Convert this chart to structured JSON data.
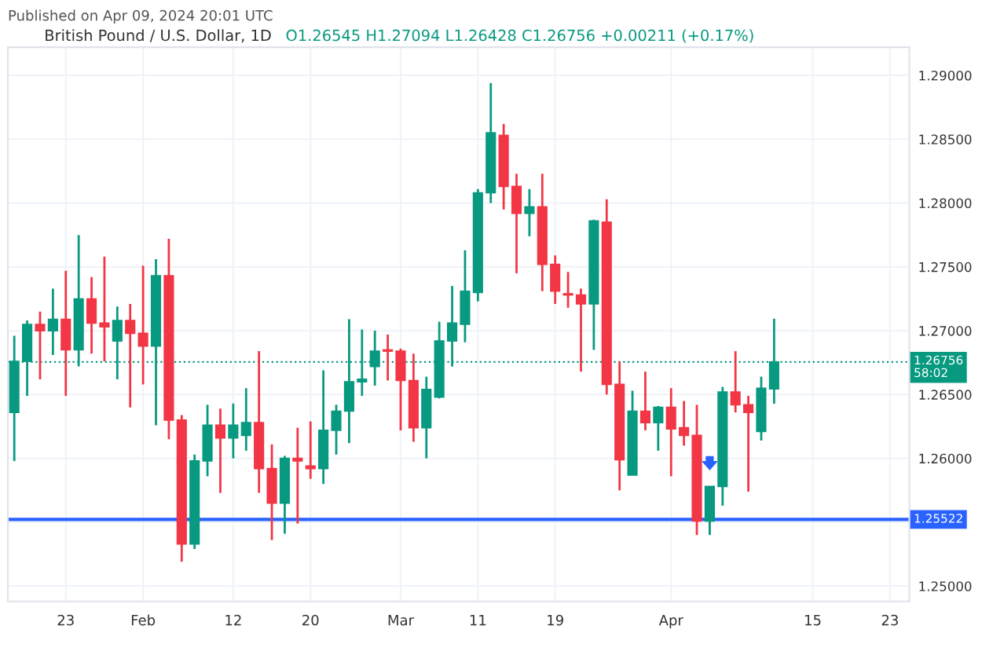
{
  "chart_data": {
    "type": "candlestick",
    "title": "British Pound / U.S. Dollar, 1D",
    "subtitle": "O1.26545 H1.27094 L1.26428 C1.26756 +0.00211 (+0.17%)",
    "annotations": [
      "Published on Apr 09, 2024 20:01 UTC"
    ],
    "categories": [
      null,
      null,
      null,
      null,
      "23",
      null,
      null,
      null,
      null,
      null,
      "Feb",
      null,
      null,
      null,
      null,
      null,
      null,
      "12",
      null,
      null,
      null,
      null,
      null,
      "20",
      null,
      null,
      null,
      null,
      null,
      null,
      "Mar",
      null,
      null,
      null,
      null,
      null,
      "11",
      null,
      null,
      null,
      null,
      null,
      "19",
      null,
      null,
      null,
      null,
      null,
      null,
      null,
      null,
      "Apr",
      null,
      null,
      null,
      null,
      null,
      null,
      null,
      null,
      null,
      null,
      "15",
      null,
      null,
      null,
      null,
      null,
      "23",
      null
    ],
    "ohlc": [
      [
        1.2636,
        1.2696,
        1.2598,
        1.2676
      ],
      [
        1.2676,
        1.2708,
        1.2649,
        1.2705
      ],
      [
        1.2705,
        1.2715,
        1.2662,
        1.27
      ],
      [
        1.27,
        1.2733,
        1.2681,
        1.2709
      ],
      [
        1.2709,
        1.2747,
        1.2649,
        1.2685
      ],
      [
        1.2685,
        1.2775,
        1.2672,
        1.2725
      ],
      [
        1.2725,
        1.2742,
        1.2682,
        1.2706
      ],
      [
        1.2706,
        1.2758,
        1.2676,
        1.2703
      ],
      [
        1.2692,
        1.2719,
        1.2662,
        1.2708
      ],
      [
        1.2708,
        1.2721,
        1.264,
        1.2698
      ],
      [
        1.2698,
        1.2751,
        1.2658,
        1.2688
      ],
      [
        1.2688,
        1.2756,
        1.2626,
        1.2743
      ],
      [
        1.2743,
        1.2772,
        1.2615,
        1.263
      ],
      [
        1.263,
        1.2634,
        1.2519,
        1.2533
      ],
      [
        1.2533,
        1.2603,
        1.2529,
        1.2598
      ],
      [
        1.2598,
        1.2642,
        1.2586,
        1.2626
      ],
      [
        1.2626,
        1.2639,
        1.2573,
        1.2616
      ],
      [
        1.2616,
        1.2643,
        1.26,
        1.2626
      ],
      [
        1.2618,
        1.2655,
        1.2606,
        1.2628
      ],
      [
        1.2628,
        1.2684,
        1.2573,
        1.2592
      ],
      [
        1.2592,
        1.2611,
        1.2536,
        1.2565
      ],
      [
        1.2565,
        1.2602,
        1.2541,
        1.26
      ],
      [
        1.26,
        1.2624,
        1.2549,
        1.2598
      ],
      [
        1.2594,
        1.2629,
        1.2584,
        1.2592
      ],
      [
        1.2592,
        1.2669,
        1.258,
        1.2622
      ],
      [
        1.2622,
        1.2642,
        1.2603,
        1.2637
      ],
      [
        1.2637,
        1.2709,
        1.2612,
        1.266
      ],
      [
        1.266,
        1.2701,
        1.2649,
        1.2662
      ],
      [
        1.2672,
        1.27,
        1.2657,
        1.2684
      ],
      [
        1.2685,
        1.2697,
        1.2661,
        1.2684
      ],
      [
        1.2684,
        1.2686,
        1.2622,
        1.2661
      ],
      [
        1.2661,
        1.2682,
        1.2613,
        1.2624
      ],
      [
        1.2624,
        1.2664,
        1.26,
        1.2654
      ],
      [
        1.2648,
        1.2707,
        1.2647,
        1.2692
      ],
      [
        1.2692,
        1.2735,
        1.2672,
        1.2706
      ],
      [
        1.2705,
        1.2763,
        1.2691,
        1.2731
      ],
      [
        1.273,
        1.2811,
        1.2723,
        1.2808
      ],
      [
        1.2808,
        1.2894,
        1.28,
        1.2855
      ],
      [
        1.2853,
        1.2862,
        1.2795,
        1.2813
      ],
      [
        1.2813,
        1.2823,
        1.2745,
        1.2792
      ],
      [
        1.2792,
        1.2811,
        1.2774,
        1.2797
      ],
      [
        1.2797,
        1.2823,
        1.2731,
        1.2752
      ],
      [
        1.2752,
        1.2759,
        1.2721,
        1.2731
      ],
      [
        1.2729,
        1.2746,
        1.2718,
        1.2728
      ],
      [
        1.2728,
        1.2733,
        1.2668,
        1.2721
      ],
      [
        1.2721,
        1.2787,
        1.2685,
        1.2786
      ],
      [
        1.2785,
        1.2803,
        1.265,
        1.2658
      ],
      [
        1.2658,
        1.2676,
        1.2575,
        1.2599
      ],
      [
        1.2587,
        1.2653,
        1.2587,
        1.2637
      ],
      [
        1.2637,
        1.2668,
        1.2622,
        1.2628
      ],
      [
        1.2628,
        1.2641,
        1.2606,
        1.264
      ],
      [
        1.264,
        1.2655,
        1.2586,
        1.2623
      ],
      [
        1.2624,
        1.2645,
        1.261,
        1.2618
      ],
      [
        1.2618,
        1.2642,
        1.254,
        1.2551
      ],
      [
        1.2551,
        1.2578,
        1.254,
        1.2578
      ],
      [
        1.2578,
        1.2656,
        1.2563,
        1.2652
      ],
      [
        1.2652,
        1.2684,
        1.2636,
        1.2642
      ],
      [
        1.2642,
        1.2649,
        1.2574,
        1.2636
      ],
      [
        1.2621,
        1.2664,
        1.2614,
        1.2655
      ],
      [
        1.26545,
        1.27094,
        1.26428,
        1.26756
      ],
      null,
      null,
      null,
      null,
      null,
      null,
      null,
      null,
      null,
      null
    ],
    "colors": [
      "#089981",
      "#089981",
      "#f23645",
      "#089981",
      "#f23645",
      "#089981",
      "#f23645",
      "#f23645",
      "#089981",
      "#f23645",
      "#f23645",
      "#089981",
      "#f23645",
      "#f23645",
      "#089981",
      "#089981",
      "#f23645",
      "#089981",
      "#089981",
      "#f23645",
      "#f23645",
      "#089981",
      "#f23645",
      "#f23645",
      "#089981",
      "#089981",
      "#089981",
      "#089981",
      "#089981",
      "#f23645",
      "#f23645",
      "#f23645",
      "#089981",
      "#089981",
      "#089981",
      "#089981",
      "#089981",
      "#089981",
      "#f23645",
      "#f23645",
      "#089981",
      "#f23645",
      "#f23645",
      "#f23645",
      "#f23645",
      "#089981",
      "#f23645",
      "#f23645",
      "#089981",
      "#f23645",
      "#089981",
      "#f23645",
      "#f23645",
      "#f23645",
      "#089981",
      "#089981",
      "#f23645",
      "#f23645",
      "#089981",
      "#089981",
      null,
      null,
      null,
      null,
      null,
      null,
      null,
      null,
      null,
      null
    ],
    "ylim": [
      1.2488,
      1.2922
    ],
    "yticks": [
      {
        "value": 1.25,
        "label": "1.25000"
      },
      {
        "value": 1.255,
        "label": null
      },
      {
        "value": 1.26,
        "label": "1.26000"
      },
      {
        "value": 1.265,
        "label": "1.26500"
      },
      {
        "value": 1.27,
        "label": "1.27000"
      },
      {
        "value": 1.275,
        "label": "1.27500"
      },
      {
        "value": 1.28,
        "label": "1.28000"
      },
      {
        "value": 1.285,
        "label": "1.28500"
      },
      {
        "value": 1.29,
        "label": "1.29000"
      }
    ],
    "ref_lines": [
      {
        "axis": "y",
        "value": 1.25522,
        "label": "1.25522",
        "color": "#2962ff",
        "line_style": "solid"
      },
      {
        "axis": "y",
        "value": 1.26756,
        "label": "1.26756\n58:02",
        "color": "#089981",
        "line_style": "dotted"
      }
    ],
    "grid": true,
    "legend": false
  }
}
